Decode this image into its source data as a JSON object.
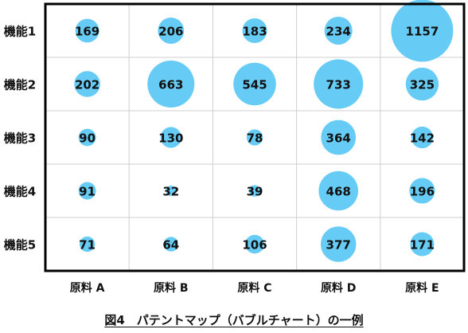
{
  "chart_data": {
    "type": "bubble",
    "title": "",
    "caption": "図4　パテントマップ（バブルチャート）の一例",
    "x_categories": [
      "原料 A",
      "原料 B",
      "原料 C",
      "原料 D",
      "原料 E"
    ],
    "y_categories": [
      "機能1",
      "機能2",
      "機能3",
      "機能4",
      "機能5"
    ],
    "values": [
      [
        169,
        206,
        183,
        234,
        1157
      ],
      [
        202,
        663,
        545,
        733,
        325
      ],
      [
        90,
        130,
        78,
        364,
        142
      ],
      [
        91,
        32,
        39,
        468,
        196
      ],
      [
        71,
        64,
        106,
        377,
        171
      ]
    ],
    "bubble_color": "#66ccf5",
    "grid": true,
    "legend": "none"
  }
}
